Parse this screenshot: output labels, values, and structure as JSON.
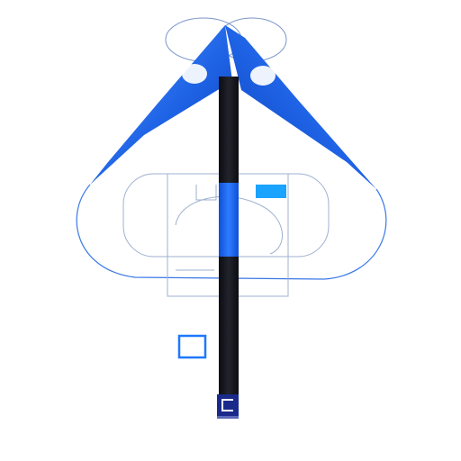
{
  "colors": {
    "background": "#ffffff",
    "canopy_blue": "#1f63e6",
    "canopy_light": "#4f9cff",
    "canopy_dark": "#0a3fb8",
    "pole_black": "#15161c",
    "pole_blue": "#1d66f0",
    "outline_blue": "#3a78e6",
    "thin_gray": "#8aa0c8",
    "accent_cyan": "#1aa3ff",
    "square_outline": "#1e78ff",
    "emblem_navy": "#1a2a8a"
  },
  "icons": {
    "canopy": "wing-canopy-icon",
    "pole": "pole-icon",
    "emblem": "emblem-icon",
    "square": "square-outline-icon"
  }
}
